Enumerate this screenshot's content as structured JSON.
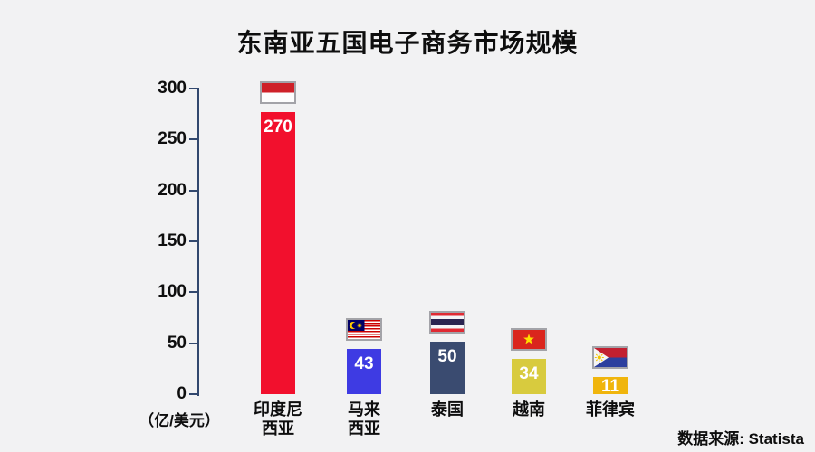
{
  "chart_data": {
    "type": "bar",
    "title": "东南亚五国电子商务市场规模",
    "source": "数据来源: Statista",
    "categories": [
      "印度尼西亚",
      "马来西亚",
      "泰国",
      "越南",
      "菲律宾"
    ],
    "category_labels": [
      "印度尼\n西亚",
      "马来\n西亚",
      "泰国",
      "越南",
      "菲律宾"
    ],
    "values": [
      270,
      43,
      50,
      34,
      11
    ],
    "bar_colors": [
      "#F2102D",
      "#3E3BE3",
      "#3A4B70",
      "#D8CB3E",
      "#F0B50C"
    ],
    "flag_icons": [
      "indonesia-flag-icon",
      "malaysia-flag-icon",
      "thailand-flag-icon",
      "vietnam-flag-icon",
      "philippines-flag-icon"
    ],
    "xlabel": "",
    "ylabel": "（亿/美元）",
    "ylim": [
      0,
      300
    ],
    "yticks": [
      0,
      50,
      100,
      150,
      200,
      250,
      300
    ],
    "grid": false,
    "legend": false,
    "value_label_color": "#FFFFFF",
    "background_color": "#F2F2F3",
    "axis_color": "#32486E",
    "text_color": "#0E0E0E"
  }
}
